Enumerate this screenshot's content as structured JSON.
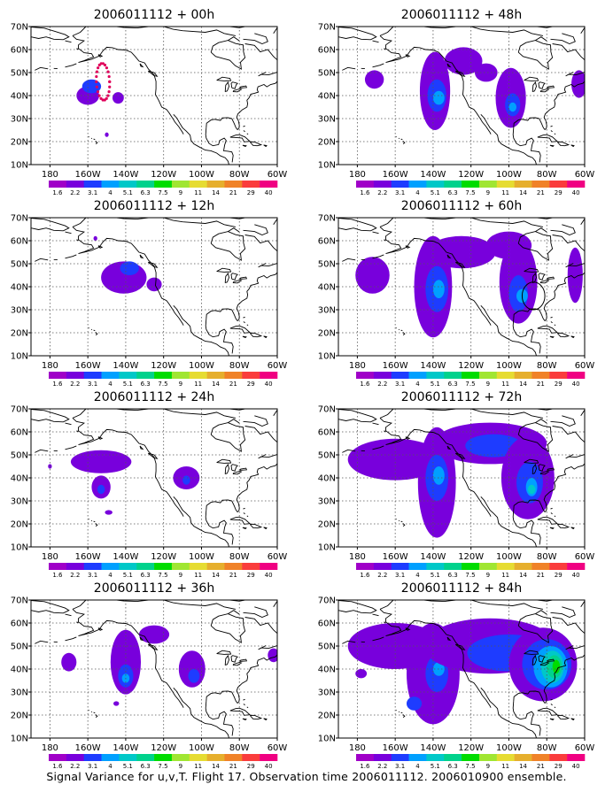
{
  "figure": {
    "caption": "Signal Variance for u,v,T. Flight 17. Observation time 2006011112. 2006010900 ensemble.",
    "lat_labels": [
      "10N",
      "20N",
      "30N",
      "40N",
      "50N",
      "60N",
      "70N"
    ],
    "lon_labels": [
      "180",
      "160W",
      "140W",
      "120W",
      "100W",
      "80W",
      "60W"
    ],
    "colorbar": {
      "labels": [
        "1.6",
        "2.2",
        "3.1",
        "4",
        "5.1",
        "6.3",
        "7.5",
        "9",
        "11",
        "14",
        "21",
        "29",
        "40"
      ],
      "colors": [
        "#a000c8",
        "#7800dc",
        "#1e3cff",
        "#00a0ff",
        "#00c8c8",
        "#00d28c",
        "#00dc00",
        "#a0e632",
        "#e6dc32",
        "#e6af2d",
        "#f08228",
        "#fa3c3c",
        "#f00082"
      ]
    },
    "panels": [
      {
        "title": "2006011112 + 00h",
        "blobs": [
          {
            "cx": -160,
            "cy": 40,
            "rx": 6,
            "ry": 4,
            "l": 1
          },
          {
            "cx": -158,
            "cy": 44,
            "rx": 5,
            "ry": 3,
            "l": 2
          },
          {
            "cx": -144,
            "cy": 39,
            "rx": 3,
            "ry": 2.5,
            "l": 1
          },
          {
            "cx": -150,
            "cy": 23,
            "rx": 1,
            "ry": 1,
            "l": 1
          }
        ],
        "track": true,
        "circle": null
      },
      {
        "title": "2006011112 + 48h",
        "blobs": [
          {
            "cx": -171,
            "cy": 47,
            "rx": 5,
            "ry": 4,
            "l": 1
          },
          {
            "cx": -139,
            "cy": 42,
            "rx": 8,
            "ry": 17,
            "l": 1
          },
          {
            "cx": -138,
            "cy": 40,
            "rx": 5,
            "ry": 7,
            "l": 2
          },
          {
            "cx": -137,
            "cy": 39,
            "rx": 3,
            "ry": 3,
            "l": 3
          },
          {
            "cx": -124,
            "cy": 55,
            "rx": 10,
            "ry": 6,
            "l": 1
          },
          {
            "cx": -99,
            "cy": 39,
            "rx": 8,
            "ry": 13,
            "l": 1
          },
          {
            "cx": -98,
            "cy": 36,
            "rx": 4,
            "ry": 5,
            "l": 2
          },
          {
            "cx": -98,
            "cy": 35,
            "rx": 2,
            "ry": 2,
            "l": 3
          },
          {
            "cx": -63,
            "cy": 45,
            "rx": 4,
            "ry": 6,
            "l": 1
          },
          {
            "cx": -112,
            "cy": 50,
            "rx": 6,
            "ry": 4,
            "l": 1
          }
        ],
        "track": false,
        "circle": null
      },
      {
        "title": "2006011112 + 12h",
        "blobs": [
          {
            "cx": -141,
            "cy": 44,
            "rx": 12,
            "ry": 7,
            "l": 1
          },
          {
            "cx": -138,
            "cy": 48,
            "rx": 5,
            "ry": 3,
            "l": 2
          },
          {
            "cx": -125,
            "cy": 41,
            "rx": 4,
            "ry": 3,
            "l": 1
          },
          {
            "cx": -156,
            "cy": 61,
            "rx": 1,
            "ry": 1,
            "l": 1
          }
        ],
        "track": false,
        "circle": null
      },
      {
        "title": "2006011112 + 60h",
        "blobs": [
          {
            "cx": -172,
            "cy": 45,
            "rx": 9,
            "ry": 8,
            "l": 1
          },
          {
            "cx": -140,
            "cy": 40,
            "rx": 10,
            "ry": 22,
            "l": 1
          },
          {
            "cx": -138,
            "cy": 39,
            "rx": 6,
            "ry": 10,
            "l": 2
          },
          {
            "cx": -137,
            "cy": 39,
            "rx": 3,
            "ry": 4,
            "l": 3
          },
          {
            "cx": -125,
            "cy": 55,
            "rx": 18,
            "ry": 7,
            "l": 1
          },
          {
            "cx": -95,
            "cy": 42,
            "rx": 10,
            "ry": 18,
            "l": 1
          },
          {
            "cx": -95,
            "cy": 37,
            "rx": 5,
            "ry": 8,
            "l": 2
          },
          {
            "cx": -93,
            "cy": 36,
            "rx": 3,
            "ry": 3,
            "l": 3
          },
          {
            "cx": -100,
            "cy": 58,
            "rx": 12,
            "ry": 6,
            "l": 1
          },
          {
            "cx": -65,
            "cy": 45,
            "rx": 4,
            "ry": 12,
            "l": 1
          }
        ],
        "track": false,
        "circle": {
          "cx": -87,
          "cy": 36,
          "r": 6
        }
      },
      {
        "title": "2006011112 + 24h",
        "blobs": [
          {
            "cx": -153,
            "cy": 47,
            "rx": 16,
            "ry": 5,
            "l": 1
          },
          {
            "cx": -153,
            "cy": 36,
            "rx": 5,
            "ry": 5,
            "l": 1
          },
          {
            "cx": -153,
            "cy": 35,
            "rx": 2,
            "ry": 2,
            "l": 2
          },
          {
            "cx": -108,
            "cy": 40,
            "rx": 7,
            "ry": 5,
            "l": 1
          },
          {
            "cx": -108,
            "cy": 39,
            "rx": 2,
            "ry": 2,
            "l": 2
          },
          {
            "cx": -149,
            "cy": 25,
            "rx": 2,
            "ry": 1,
            "l": 1
          },
          {
            "cx": -180,
            "cy": 45,
            "rx": 1,
            "ry": 1,
            "l": 1
          }
        ],
        "track": false,
        "circle": null
      },
      {
        "title": "2006011112 + 72h",
        "blobs": [
          {
            "cx": -160,
            "cy": 48,
            "rx": 25,
            "ry": 9,
            "l": 1
          },
          {
            "cx": -138,
            "cy": 38,
            "rx": 10,
            "ry": 24,
            "l": 1
          },
          {
            "cx": -138,
            "cy": 40,
            "rx": 6,
            "ry": 10,
            "l": 2
          },
          {
            "cx": -137,
            "cy": 41,
            "rx": 3,
            "ry": 4,
            "l": 3
          },
          {
            "cx": -110,
            "cy": 55,
            "rx": 30,
            "ry": 9,
            "l": 1
          },
          {
            "cx": -108,
            "cy": 54,
            "rx": 15,
            "ry": 5,
            "l": 2
          },
          {
            "cx": -90,
            "cy": 40,
            "rx": 14,
            "ry": 18,
            "l": 1
          },
          {
            "cx": -89,
            "cy": 38,
            "rx": 7,
            "ry": 9,
            "l": 2
          },
          {
            "cx": -88,
            "cy": 36,
            "rx": 3,
            "ry": 4,
            "l": 3
          },
          {
            "cx": -88,
            "cy": 35,
            "rx": 2,
            "ry": 2,
            "l": 4
          }
        ],
        "track": false,
        "circle": null
      },
      {
        "title": "2006011112 + 36h",
        "blobs": [
          {
            "cx": -170,
            "cy": 43,
            "rx": 4,
            "ry": 4,
            "l": 1
          },
          {
            "cx": -140,
            "cy": 43,
            "rx": 8,
            "ry": 14,
            "l": 1
          },
          {
            "cx": -140,
            "cy": 37,
            "rx": 4,
            "ry": 5,
            "l": 2
          },
          {
            "cx": -140,
            "cy": 36,
            "rx": 2,
            "ry": 2,
            "l": 3
          },
          {
            "cx": -105,
            "cy": 40,
            "rx": 7,
            "ry": 8,
            "l": 1
          },
          {
            "cx": -104,
            "cy": 37,
            "rx": 3,
            "ry": 3,
            "l": 2
          },
          {
            "cx": -125,
            "cy": 55,
            "rx": 8,
            "ry": 4,
            "l": 1
          },
          {
            "cx": -62,
            "cy": 46,
            "rx": 3,
            "ry": 3,
            "l": 1
          },
          {
            "cx": -145,
            "cy": 25,
            "rx": 1.5,
            "ry": 1,
            "l": 1
          }
        ],
        "track": false,
        "circle": null
      },
      {
        "title": "2006011112 + 84h",
        "blobs": [
          {
            "cx": -160,
            "cy": 50,
            "rx": 25,
            "ry": 10,
            "l": 1
          },
          {
            "cx": -178,
            "cy": 38,
            "rx": 3,
            "ry": 2,
            "l": 1
          },
          {
            "cx": -140,
            "cy": 38,
            "rx": 14,
            "ry": 22,
            "l": 1
          },
          {
            "cx": -138,
            "cy": 38,
            "rx": 6,
            "ry": 8,
            "l": 2
          },
          {
            "cx": -137,
            "cy": 40,
            "rx": 3,
            "ry": 3,
            "l": 3
          },
          {
            "cx": -150,
            "cy": 25,
            "rx": 4,
            "ry": 3,
            "l": 2
          },
          {
            "cx": -110,
            "cy": 50,
            "rx": 35,
            "ry": 12,
            "l": 1
          },
          {
            "cx": -100,
            "cy": 47,
            "rx": 22,
            "ry": 8,
            "l": 2
          },
          {
            "cx": -82,
            "cy": 42,
            "rx": 18,
            "ry": 16,
            "l": 1
          },
          {
            "cx": -80,
            "cy": 42,
            "rx": 13,
            "ry": 11,
            "l": 2
          },
          {
            "cx": -78,
            "cy": 41,
            "rx": 9,
            "ry": 9,
            "l": 3
          },
          {
            "cx": -77,
            "cy": 41,
            "rx": 6,
            "ry": 7,
            "l": 4
          },
          {
            "cx": -76,
            "cy": 41,
            "rx": 4,
            "ry": 5,
            "l": 5
          },
          {
            "cx": -75,
            "cy": 41,
            "rx": 2,
            "ry": 3,
            "l": 6
          }
        ],
        "track": false,
        "circle": null
      }
    ]
  }
}
